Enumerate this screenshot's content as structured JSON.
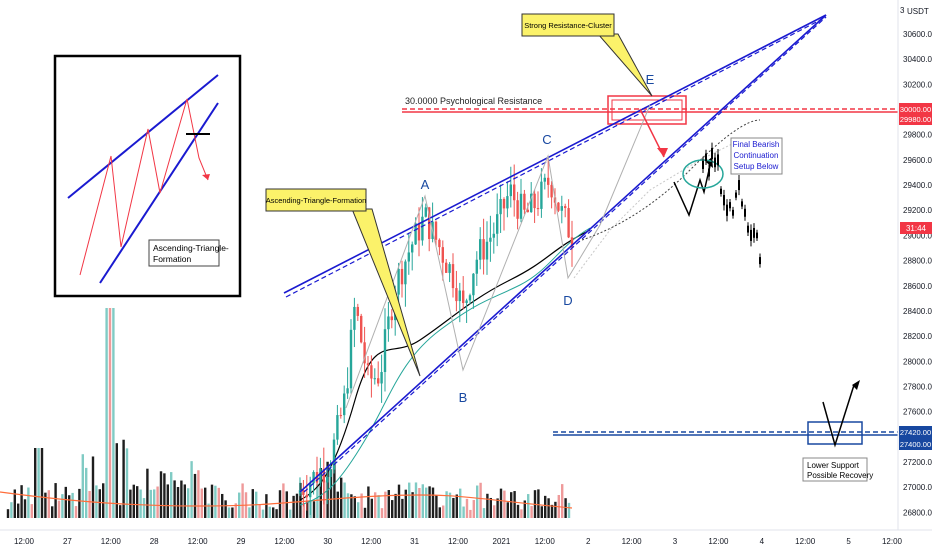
{
  "currency": "USDT",
  "corner_value": "3",
  "price_countdown": "31:44",
  "chart_data": {
    "type": "candlestick",
    "y_ticks": [
      26800,
      27000,
      27200,
      27400,
      27600,
      27800,
      28000,
      28200,
      28400,
      28600,
      28800,
      29000,
      29200,
      29400,
      29600,
      29800,
      30000,
      30200,
      30400,
      30600
    ],
    "ylim": [
      26660,
      30870
    ],
    "x_ticks": [
      "12:00",
      "27",
      "12:00",
      "28",
      "12:00",
      "29",
      "12:00",
      "30",
      "12:00",
      "31",
      "12:00",
      "2021",
      "12:00",
      "2",
      "12:00",
      "3",
      "12:00",
      "4",
      "12:00",
      "5",
      "12:00"
    ],
    "price_tags": [
      {
        "value": "30000.00",
        "color": "#f23645"
      },
      {
        "value": "29980.00",
        "color": "#f23645"
      },
      {
        "value": "27420.00",
        "color": "#1848a0"
      },
      {
        "value": "27400.00",
        "color": "#1848a0"
      }
    ],
    "last_price_color": "#f23645",
    "annotations": {
      "psychological": "30.0000 Psychological Resistance",
      "strong_resistance": "Strong Resistance-Cluster",
      "ascending_formation": "Ascending-Triangle-Formation",
      "final_bearish": [
        "Final Bearish",
        "Continuation",
        "Setup Below"
      ],
      "lower_support": [
        "Lower Support",
        "Possible Recovery"
      ],
      "inset_label": [
        "Ascending-Triangle-",
        "Formation"
      ]
    },
    "wave_labels": [
      "A",
      "B",
      "C",
      "D",
      "E"
    ],
    "colors": {
      "up": "#26a69a",
      "down": "#ef5350",
      "trend": "#1a1ad0",
      "resistance": "#f23645",
      "support": "#1848a0",
      "callout": "#fbf26a"
    }
  }
}
